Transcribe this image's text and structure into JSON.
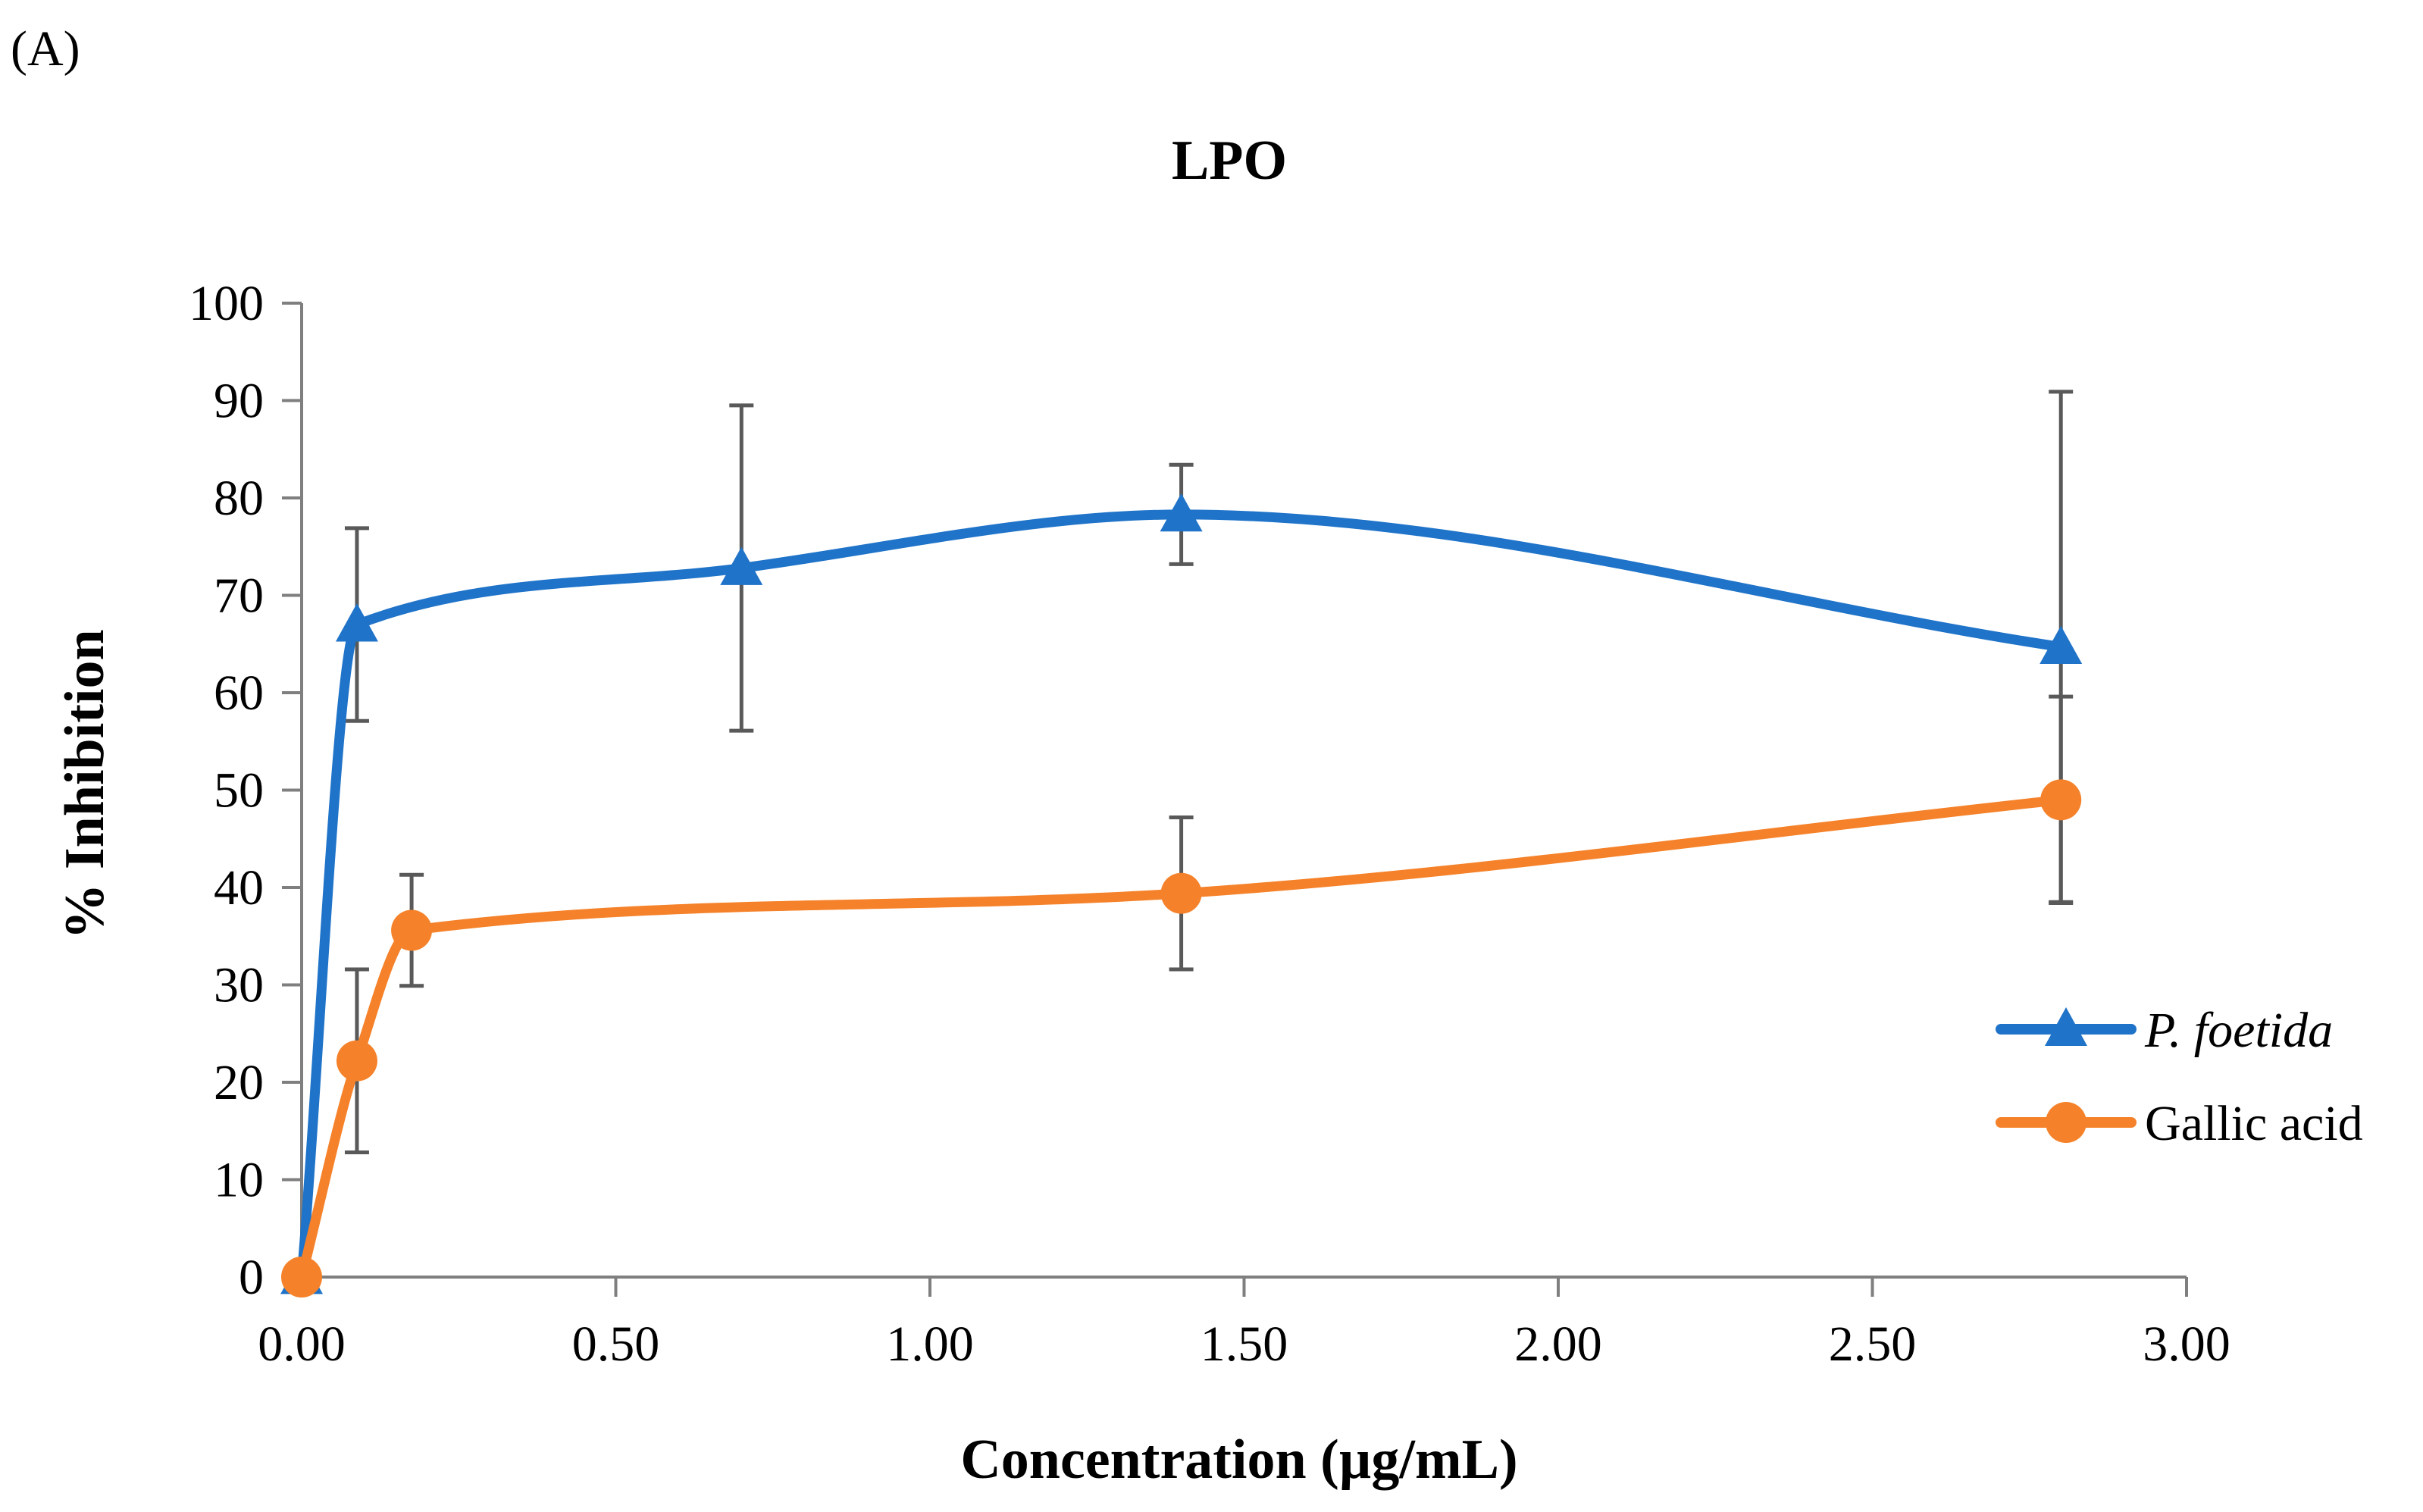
{
  "panel_label": "(A)",
  "chart_data": {
    "type": "line",
    "title": "LPO",
    "xlabel": "Concentration (µg/mL)",
    "ylabel": "% Inhibition",
    "xlim": [
      0,
      3
    ],
    "ylim": [
      0,
      100
    ],
    "x_ticks": [
      0,
      0.5,
      1,
      1.5,
      2,
      2.5,
      3
    ],
    "x_tick_labels": [
      "0.00",
      "0.50",
      "1.00",
      "1.50",
      "2.00",
      "2.50",
      "3.00"
    ],
    "y_ticks": [
      0,
      10,
      20,
      30,
      40,
      50,
      60,
      70,
      80,
      90,
      100
    ],
    "y_tick_labels": [
      "0",
      "10",
      "20",
      "30",
      "40",
      "50",
      "60",
      "70",
      "80",
      "90",
      "100"
    ],
    "grid": false,
    "legend_position": "right",
    "series": [
      {
        "name": "P. foetida",
        "color": "#1F73C8",
        "marker": "triangle",
        "smooth": true,
        "x": [
          0,
          0.088,
          0.7,
          1.4,
          2.8
        ],
        "y": [
          0,
          67,
          72.8,
          78.3,
          64.7
        ],
        "err": [
          0,
          9.9,
          16.7,
          5.1,
          26.2
        ]
      },
      {
        "name": "Gallic acid",
        "color": "#F5822A",
        "marker": "circle",
        "smooth": true,
        "x": [
          0,
          0.088,
          0.175,
          1.4,
          2.8
        ],
        "y": [
          0,
          22.2,
          35.6,
          39.4,
          49
        ],
        "err": [
          0,
          9.4,
          5.7,
          7.8,
          10.6
        ]
      }
    ],
    "error_bar_color": "#595959"
  }
}
